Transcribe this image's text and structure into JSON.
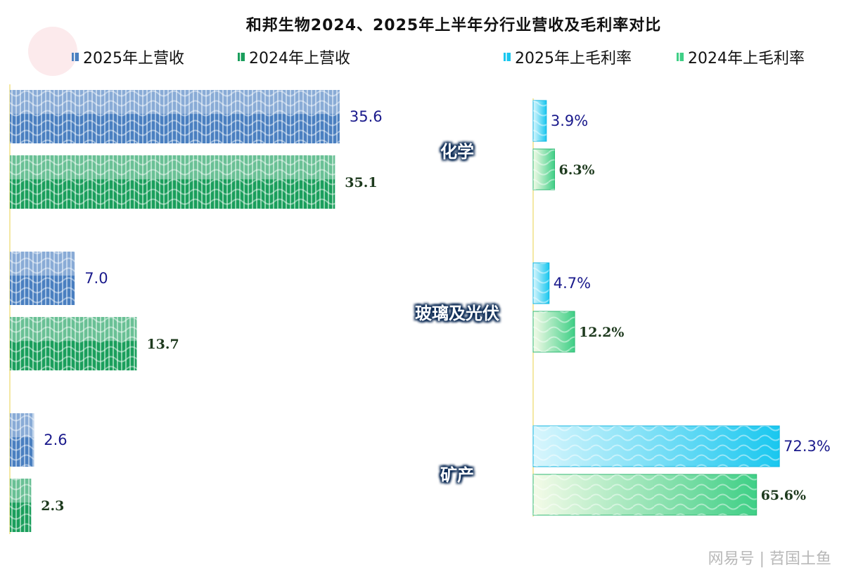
{
  "chart_data": {
    "type": "bar",
    "title": "和邦生物2024、2025年上半年分行业营收及毛利率对比",
    "categories": [
      "化学",
      "玻璃及光伏",
      "矿产"
    ],
    "legend": [
      {
        "name": "2025年上营收",
        "color": "#4a7fc0"
      },
      {
        "name": "2024年上营收",
        "color": "#1a9e5c"
      },
      {
        "name": "2025年上毛利率",
        "color": "#19c7ef"
      },
      {
        "name": "2024年上毛利率",
        "color": "#3fcf86"
      }
    ],
    "revenue": {
      "series": [
        {
          "name": "2025年上营收",
          "values": [
            35.6,
            7.0,
            2.6
          ],
          "labels": [
            "35.6",
            "7.0",
            "2.6"
          ],
          "color": "#4a7fc0"
        },
        {
          "name": "2024年上营收",
          "values": [
            35.1,
            13.7,
            2.3
          ],
          "labels": [
            "35.1",
            "13.7",
            "2.3"
          ],
          "color": "#1a9e5c"
        }
      ],
      "xlim": [
        0,
        36.9
      ]
    },
    "gross_margin": {
      "series": [
        {
          "name": "2025年上毛利率",
          "values": [
            3.9,
            4.7,
            72.3
          ],
          "labels": [
            "3.9%",
            "4.7%",
            "72.3%"
          ],
          "color": "#19c7ef"
        },
        {
          "name": "2024年上毛利率",
          "values": [
            6.3,
            12.2,
            65.6
          ],
          "labels": [
            "6.3%",
            "12.2%",
            "65.6%"
          ],
          "color": "#3fcf86"
        }
      ],
      "xlim": [
        0,
        73.3
      ]
    },
    "grid": false,
    "legend_position": "top"
  },
  "watermark": "网易号 | 苕国土鱼"
}
